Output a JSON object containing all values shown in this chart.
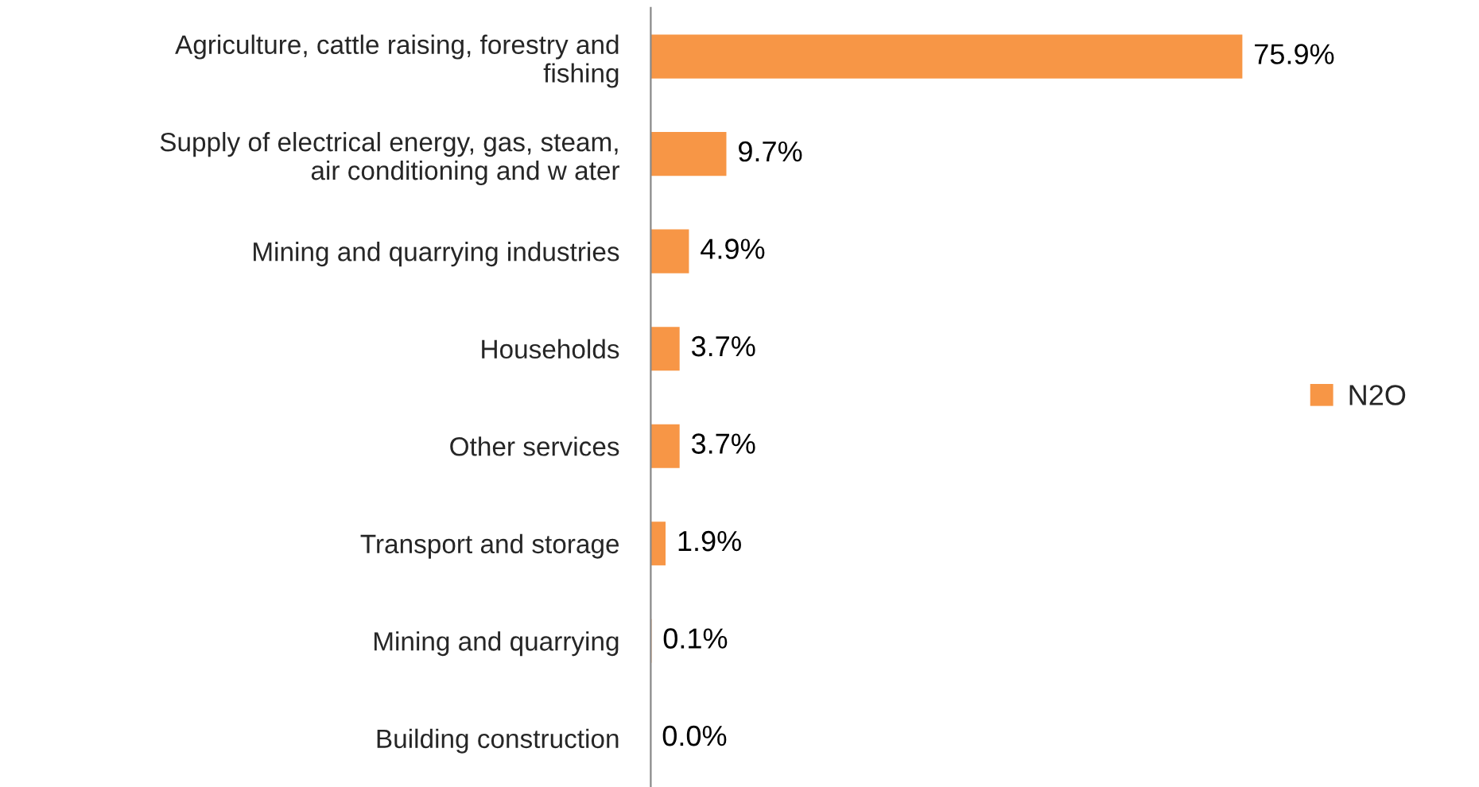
{
  "chart_data": {
    "type": "bar",
    "orientation": "horizontal",
    "categories": [
      "Agriculture, cattle raising, forestry and\nfishing",
      "Supply of electrical energy, gas, steam,\nair conditioning and w ater",
      "Mining and quarrying industries",
      "Households",
      "Other services",
      "Transport and storage",
      "Mining and quarrying",
      "Building construction"
    ],
    "series": [
      {
        "name": "N2O",
        "color": "#f79646",
        "values": [
          75.9,
          9.7,
          4.9,
          3.7,
          3.7,
          1.9,
          0.1,
          0.0
        ],
        "value_labels": [
          "75.9%",
          "9.7%",
          "4.9%",
          "3.7%",
          "3.7%",
          "1.9%",
          "0.1%",
          "0.0%"
        ]
      }
    ],
    "legend": "right",
    "grid": false
  }
}
